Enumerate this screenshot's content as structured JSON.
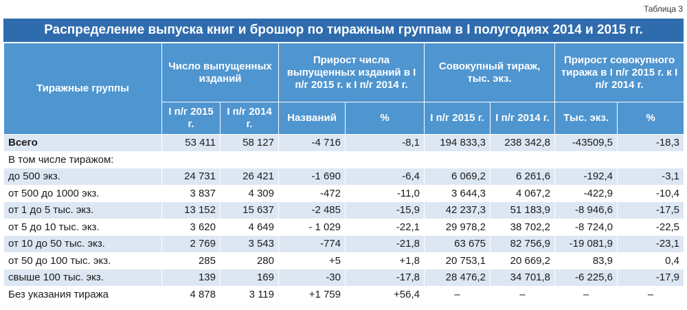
{
  "table_label": "Таблица 3",
  "title": "Распределение выпуска книг и брошюр по тиражным группам в I полугодиях 2014 и 2015 гг.",
  "headers": {
    "group": "Тиражные группы",
    "count": "Число выпущенных изданий",
    "count_growth": "Прирост числа выпущенных изданий в I п/г 2015 г. к I п/г 2014 г.",
    "total_copies": "Совокупный тираж, тыс. экз.",
    "copies_growth": "Прирост совокупного тиража в I п/г 2015 г. к I п/г 2014 г.",
    "h1_2015": "I п/г 2015 г.",
    "h1_2014": "I п/г 2014 г.",
    "titles": "Названий",
    "percent": "%",
    "h1_2015_b": "I п/г 2015 г.",
    "h1_2014_b": "I п/г 2014 г.",
    "thousand_copies": "Тыс. экз.",
    "percent_b": "%"
  },
  "rows": [
    {
      "label": "Всего",
      "c2015": "53 411",
      "c2014": "58 127",
      "titles": "-4 716",
      "pct": "-8,1",
      "t2015": "194 833,3",
      "t2014": "238 342,8",
      "tg": "-43509,5",
      "tgpct": "-18,3"
    },
    {
      "label": "В том числе тиражом:",
      "c2015": "",
      "c2014": "",
      "titles": "",
      "pct": "",
      "t2015": "",
      "t2014": "",
      "tg": "",
      "tgpct": ""
    },
    {
      "label": "до 500 экз.",
      "c2015": "24 731",
      "c2014": "26 421",
      "titles": "-1 690",
      "pct": "-6,4",
      "t2015": "6 069,2",
      "t2014": "6 261,6",
      "tg": "-192,4",
      "tgpct": "-3,1"
    },
    {
      "label": "от 500 до 1000 экз.",
      "c2015": "3 837",
      "c2014": "4 309",
      "titles": "-472",
      "pct": "-11,0",
      "t2015": "3 644,3",
      "t2014": "4 067,2",
      "tg": "-422,9",
      "tgpct": "-10,4"
    },
    {
      "label": "от 1 до 5 тыс. экз.",
      "c2015": "13 152",
      "c2014": "15 637",
      "titles": "-2 485",
      "pct": "-15,9",
      "t2015": "42 237,3",
      "t2014": "51 183,9",
      "tg": "-8 946,6",
      "tgpct": "-17,5"
    },
    {
      "label": "от 5 до 10 тыс. экз.",
      "c2015": "3 620",
      "c2014": "4 649",
      "titles": "- 1 029",
      "pct": "-22,1",
      "t2015": "29 978,2",
      "t2014": "38 702,2",
      "tg": "-8 724,0",
      "tgpct": "-22,5"
    },
    {
      "label": "от 10 до 50 тыс. экз.",
      "c2015": "2 769",
      "c2014": "3 543",
      "titles": "-774",
      "pct": "-21,8",
      "t2015": "63 675",
      "t2014": "82 756,9",
      "tg": "-19 081,9",
      "tgpct": "-23,1"
    },
    {
      "label": "от 50 до 100 тыс. экз.",
      "c2015": "285",
      "c2014": "280",
      "titles": "+5",
      "pct": "+1,8",
      "t2015": "20 753,1",
      "t2014": "20 669,2",
      "tg": "83,9",
      "tgpct": "0,4"
    },
    {
      "label": "свыше 100 тыс. экз.",
      "c2015": "139",
      "c2014": "169",
      "titles": "-30",
      "pct": "-17,8",
      "t2015": "28 476,2",
      "t2014": "34 701,8",
      "tg": "-6 225,6",
      "tgpct": "-17,9"
    },
    {
      "label": "Без указания тиража",
      "c2015": "4 878",
      "c2014": "3 119",
      "titles": "+1 759",
      "pct": "+56,4",
      "t2015": "–",
      "t2014": "–",
      "tg": "–",
      "tgpct": "–"
    }
  ]
}
